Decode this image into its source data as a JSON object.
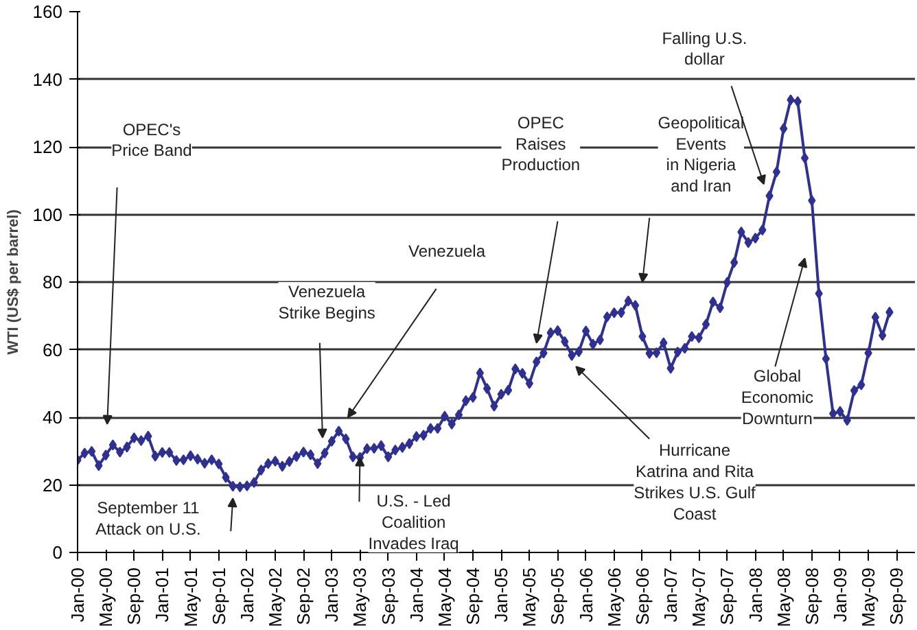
{
  "chart_data": {
    "type": "line",
    "ylabel": "WTI (US$ per barrel)",
    "categories": [
      "Jan-00",
      null,
      null,
      null,
      "May-00",
      null,
      null,
      null,
      "Sep-00",
      null,
      null,
      null,
      "Jan-01",
      null,
      null,
      null,
      "May-01",
      null,
      null,
      null,
      "Sep-01",
      null,
      null,
      null,
      "Jan-02",
      null,
      null,
      null,
      "May-02",
      null,
      null,
      null,
      "Sep-02",
      null,
      null,
      null,
      "Jan-03",
      null,
      null,
      null,
      "May-03",
      null,
      null,
      null,
      "Sep-03",
      null,
      null,
      null,
      "Jan-04",
      null,
      null,
      null,
      "May-04",
      null,
      null,
      null,
      "Sep-04",
      null,
      null,
      null,
      "Jan-05",
      null,
      null,
      null,
      "May-05",
      null,
      null,
      null,
      "Sep-05",
      null,
      null,
      null,
      "Jan-06",
      null,
      null,
      null,
      "May-06",
      null,
      null,
      null,
      "Sep-06",
      null,
      null,
      null,
      "Jan-07",
      null,
      null,
      null,
      "May-07",
      null,
      null,
      null,
      "Sep-07",
      null,
      null,
      null,
      "Jan-08",
      null,
      null,
      null,
      "May-08",
      null,
      null,
      null,
      "Sep-08",
      null,
      null,
      null,
      "Jan-09",
      null,
      null,
      null,
      "May-09",
      null,
      null,
      null,
      "Sep-09"
    ],
    "series": [
      {
        "color": "#2e3192",
        "values": [
          27.3,
          29.4,
          29.9,
          25.7,
          28.8,
          31.8,
          29.7,
          31.2,
          33.9,
          33.1,
          34.4,
          28.5,
          29.6,
          29.6,
          27.2,
          27.4,
          28.6,
          27.6,
          26.4,
          27.4,
          26.2,
          22.2,
          19.6,
          19.4,
          19.7,
          20.7,
          24.4,
          26.3,
          27.0,
          25.5,
          26.9,
          28.4,
          29.7,
          28.9,
          26.3,
          29.4,
          32.9,
          35.9,
          33.6,
          28.3,
          28.1,
          30.7,
          30.8,
          31.6,
          28.3,
          30.3,
          31.1,
          32.2,
          34.3,
          34.7,
          36.7,
          36.7,
          40.3,
          38.0,
          40.7,
          44.9,
          45.9,
          53.1,
          48.5,
          43.3,
          46.8,
          48.0,
          54.3,
          53.0,
          50.0,
          56.4,
          59.0,
          65.0,
          65.6,
          62.4,
          58.3,
          59.4,
          65.5,
          61.6,
          62.9,
          69.7,
          70.9,
          71.0,
          74.4,
          73.1,
          63.9,
          58.9,
          59.1,
          62.0,
          54.5,
          59.3,
          60.4,
          63.9,
          63.5,
          67.5,
          74.1,
          72.4,
          79.9,
          85.8,
          94.8,
          91.7,
          93.0,
          95.4,
          105.5,
          112.6,
          125.4,
          133.9,
          133.4,
          116.7,
          104.1,
          76.6,
          57.3,
          41.1,
          41.7,
          39.1,
          47.9,
          49.6,
          59.0,
          69.6,
          64.2,
          71.1,
          null
        ]
      }
    ],
    "ylim": [
      0,
      160
    ],
    "yticks": [
      0,
      20,
      40,
      60,
      80,
      100,
      120,
      140,
      160
    ],
    "grid": "y",
    "marker": "diamond",
    "line_style": "solid",
    "annotations": [
      "OPEC's\nPrice Band",
      "September 11\nAttack on U.S.",
      "Venezuela\nStrike Begins",
      "Venezuela",
      {
        "text": "U.S. - Led\nCoalition\nInvades Iraq",
        "x": "May-03",
        "y": 28.1
      },
      "OPEC\nRaises\nProduction",
      "Geopolitical\nEvents\nin Nigeria\nand Iran",
      "Falling U.S.\ndollar",
      "Global\nEconomic\nDownturn",
      "Hurricane\nKatrina and Rita\nStrikes U.S. Gulf\nCoast"
    ]
  }
}
